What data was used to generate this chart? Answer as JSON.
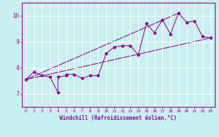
{
  "xlabel": "Windchill (Refroidissement éolien,°C)",
  "background_color": "#c8f0f0",
  "grid_color": "#ffffff",
  "line_color": "#990099",
  "xlim": [
    -0.5,
    23.5
  ],
  "ylim": [
    6.5,
    10.5
  ],
  "yticks": [
    7,
    8,
    9,
    10
  ],
  "xticks": [
    0,
    1,
    2,
    3,
    4,
    5,
    6,
    7,
    8,
    9,
    10,
    11,
    12,
    13,
    14,
    15,
    16,
    17,
    18,
    19,
    20,
    21,
    22,
    23
  ],
  "series": [
    [
      0,
      7.55
    ],
    [
      1,
      7.85
    ],
    [
      2,
      7.7
    ],
    [
      3,
      7.65
    ],
    [
      4,
      7.05
    ],
    [
      4,
      7.65
    ],
    [
      5,
      7.7
    ],
    [
      5,
      7.75
    ],
    [
      6,
      7.75
    ],
    [
      7,
      7.6
    ],
    [
      8,
      7.7
    ],
    [
      9,
      7.7
    ],
    [
      10,
      8.55
    ],
    [
      11,
      8.8
    ],
    [
      12,
      8.85
    ],
    [
      13,
      8.85
    ],
    [
      14,
      8.5
    ],
    [
      15,
      9.7
    ],
    [
      16,
      9.35
    ],
    [
      17,
      9.85
    ],
    [
      18,
      9.3
    ],
    [
      19,
      10.1
    ],
    [
      20,
      9.75
    ],
    [
      21,
      9.8
    ],
    [
      22,
      9.2
    ],
    [
      23,
      9.15
    ]
  ],
  "line1": [
    [
      0,
      7.55
    ],
    [
      23,
      9.15
    ]
  ],
  "line2": [
    [
      0,
      7.55
    ],
    [
      19,
      10.1
    ]
  ],
  "xlabel_color": "#990099",
  "tick_color": "#990099"
}
